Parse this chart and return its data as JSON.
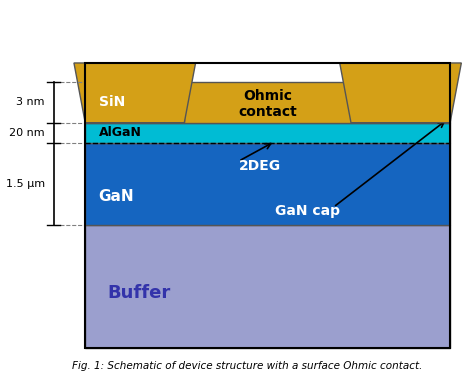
{
  "fig_width": 4.74,
  "fig_height": 3.76,
  "dpi": 100,
  "background_color": "#ffffff",
  "caption": "Fig. 1: Schematic of device structure with a surface Ohmic contact.",
  "colors": {
    "ohmic_contact": "#d4a017",
    "sin": "#2e8b2e",
    "algan": "#00bcd4",
    "gan": "#1565c0",
    "buffer": "#9b9fce"
  },
  "annotations": {
    "3nm_label": "3 nm",
    "20nm_label": "20 nm",
    "1p5um_label": "1.5 μm",
    "2deg_label": "2DEG",
    "gan_cap_label": "GaN cap",
    "buffer_label": "Buffer",
    "gan_label": "GaN",
    "algan_label": "AlGaN",
    "sin_label": "SiN",
    "ohmic_label": "Ohmic\ncontact"
  }
}
